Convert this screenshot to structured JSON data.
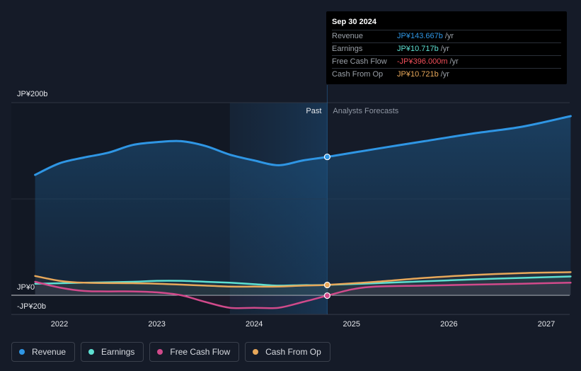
{
  "chart_data": {
    "type": "area",
    "ylim": [
      -20,
      200
    ],
    "y_ticks": [
      {
        "value": 200,
        "label": "JP¥200b"
      },
      {
        "value": 0,
        "label": "JP¥0"
      },
      {
        "value": -20,
        "label": "-JP¥20b"
      }
    ],
    "x_ticks": [
      {
        "value": 2022,
        "label": "2022"
      },
      {
        "value": 2023,
        "label": "2023"
      },
      {
        "value": 2024,
        "label": "2024"
      },
      {
        "value": 2025,
        "label": "2025"
      },
      {
        "value": 2026,
        "label": "2026"
      },
      {
        "value": 2027,
        "label": "2027"
      }
    ],
    "xlim": [
      2021.55,
      2027.25
    ],
    "past_label": "Past",
    "forecast_label": "Analysts Forecasts",
    "past_region_start": 2023.75,
    "divider_x": 2024.75,
    "series": [
      {
        "name": "Revenue",
        "color": "#2f96e4",
        "x": [
          2021.75,
          2022.0,
          2022.25,
          2022.5,
          2022.75,
          2023.0,
          2023.25,
          2023.5,
          2023.75,
          2024.0,
          2024.25,
          2024.5,
          2024.75,
          2025.25,
          2025.75,
          2026.25,
          2026.75,
          2027.25
        ],
        "values": [
          125,
          137,
          143,
          148,
          156,
          159,
          160,
          155,
          146,
          140,
          135,
          140,
          143.7,
          152,
          160,
          168,
          175,
          186
        ]
      },
      {
        "name": "Earnings",
        "color": "#5ee0d2",
        "x": [
          2021.75,
          2022.25,
          2022.75,
          2023.0,
          2023.25,
          2023.5,
          2023.75,
          2024.0,
          2024.25,
          2024.5,
          2024.75,
          2025.25,
          2025.75,
          2026.25,
          2026.75,
          2027.25
        ],
        "values": [
          12,
          13,
          14,
          15,
          15,
          14,
          13,
          11.5,
          10,
          10.5,
          10.7,
          12.5,
          14.5,
          16.5,
          18,
          19.5
        ]
      },
      {
        "name": "Free Cash Flow",
        "color": "#d14a8b",
        "x": [
          2021.75,
          2022.0,
          2022.25,
          2022.5,
          2022.75,
          2023.0,
          2023.25,
          2023.5,
          2023.75,
          2024.0,
          2024.25,
          2024.5,
          2024.75,
          2025.0,
          2025.25,
          2025.75,
          2026.25,
          2026.75,
          2027.25
        ],
        "values": [
          14,
          8,
          4.5,
          4,
          4,
          3,
          0,
          -7,
          -13,
          -13,
          -13,
          -7,
          -0.4,
          6,
          9,
          10,
          11,
          12,
          13
        ]
      },
      {
        "name": "Cash From Op",
        "color": "#e8a85a",
        "x": [
          2021.75,
          2022.0,
          2022.25,
          2022.75,
          2023.0,
          2023.25,
          2023.5,
          2023.75,
          2024.0,
          2024.25,
          2024.5,
          2024.75,
          2025.25,
          2025.75,
          2026.25,
          2026.75,
          2027.25
        ],
        "values": [
          20,
          15,
          13,
          12.5,
          12,
          11,
          10,
          9,
          9,
          9,
          10,
          10.7,
          14,
          18,
          21,
          23,
          24
        ]
      }
    ],
    "highlight_x": 2024.75
  },
  "tooltip": {
    "date": "Sep 30 2024",
    "rows": [
      {
        "label": "Revenue",
        "value": "JP¥143.667b",
        "unit": "/yr",
        "color": "#2f96e4"
      },
      {
        "label": "Earnings",
        "value": "JP¥10.717b",
        "unit": "/yr",
        "color": "#5ee0d2"
      },
      {
        "label": "Free Cash Flow",
        "value": "-JP¥396.000m",
        "unit": "/yr",
        "color": "#f24f5a"
      },
      {
        "label": "Cash From Op",
        "value": "JP¥10.721b",
        "unit": "/yr",
        "color": "#e8a85a"
      }
    ]
  },
  "legend": [
    {
      "label": "Revenue",
      "color": "#2f96e4"
    },
    {
      "label": "Earnings",
      "color": "#5ee0d2"
    },
    {
      "label": "Free Cash Flow",
      "color": "#d14a8b"
    },
    {
      "label": "Cash From Op",
      "color": "#e8a85a"
    }
  ]
}
